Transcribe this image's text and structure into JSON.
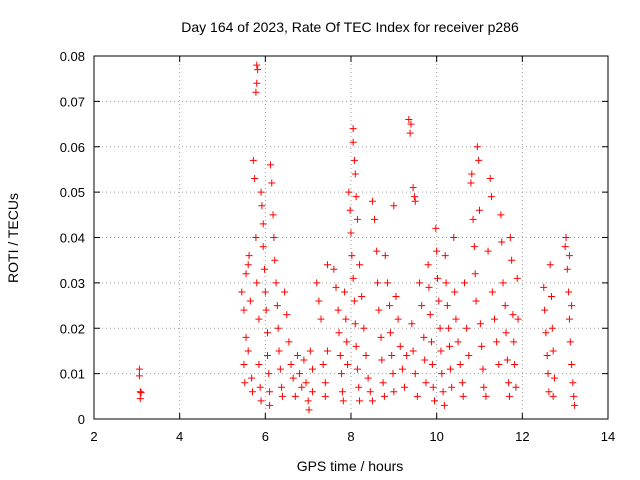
{
  "chart_data": {
    "type": "scatter",
    "title": "Day 164 of 2023, Rate Of TEC Index for receiver p286",
    "xlabel": "GPS time / hours",
    "ylabel": "ROTI / TECUs",
    "xlim": [
      2,
      14
    ],
    "ylim": [
      0,
      0.08
    ],
    "xticks": [
      2,
      4,
      6,
      8,
      10,
      12,
      14
    ],
    "xtick_labels": [
      "2",
      "4",
      "6",
      "8",
      "10",
      "12",
      "14"
    ],
    "yticks": [
      0,
      0.01,
      0.02,
      0.03,
      0.04,
      0.05,
      0.06,
      0.07,
      0.08
    ],
    "ytick_labels": [
      "0",
      "0.01",
      "0.02",
      "0.03",
      "0.04",
      "0.05",
      "0.06",
      "0.07",
      "0.08"
    ],
    "grid": true,
    "marker": "+",
    "color": "#ff0000",
    "series": [
      {
        "name": "ROTI",
        "points": [
          [
            3.06,
            0.011
          ],
          [
            3.06,
            0.0095
          ],
          [
            3.08,
            0.006
          ],
          [
            3.1,
            0.0058
          ],
          [
            3.08,
            0.0045
          ],
          [
            5.45,
            0.028
          ],
          [
            5.5,
            0.024
          ],
          [
            5.55,
            0.032
          ],
          [
            5.5,
            0.012
          ],
          [
            5.52,
            0.008
          ],
          [
            5.55,
            0.018
          ],
          [
            5.6,
            0.034
          ],
          [
            5.62,
            0.036
          ],
          [
            5.65,
            0.026
          ],
          [
            5.6,
            0.015
          ],
          [
            5.68,
            0.009
          ],
          [
            5.7,
            0.006
          ],
          [
            5.72,
            0.057
          ],
          [
            5.75,
            0.053
          ],
          [
            5.78,
            0.072
          ],
          [
            5.8,
            0.074
          ],
          [
            5.8,
            0.078
          ],
          [
            5.82,
            0.077
          ],
          [
            5.78,
            0.04
          ],
          [
            5.8,
            0.03
          ],
          [
            5.85,
            0.022
          ],
          [
            5.85,
            0.012
          ],
          [
            5.88,
            0.007
          ],
          [
            5.9,
            0.004
          ],
          [
            5.9,
            0.05
          ],
          [
            5.92,
            0.047
          ],
          [
            5.95,
            0.043
          ],
          [
            5.95,
            0.038
          ],
          [
            5.98,
            0.033
          ],
          [
            6.0,
            0.028
          ],
          [
            6.02,
            0.024
          ],
          [
            6.05,
            0.019
          ],
          [
            6.05,
            0.014
          ],
          [
            6.08,
            0.01
          ],
          [
            6.1,
            0.006
          ],
          [
            6.1,
            0.003
          ],
          [
            6.12,
            0.056
          ],
          [
            6.15,
            0.052
          ],
          [
            6.18,
            0.045
          ],
          [
            6.2,
            0.04
          ],
          [
            6.22,
            0.035
          ],
          [
            6.25,
            0.03
          ],
          [
            6.28,
            0.025
          ],
          [
            6.3,
            0.02
          ],
          [
            6.32,
            0.015
          ],
          [
            6.35,
            0.011
          ],
          [
            6.38,
            0.007
          ],
          [
            6.4,
            0.005
          ],
          [
            6.45,
            0.028
          ],
          [
            6.5,
            0.023
          ],
          [
            6.55,
            0.017
          ],
          [
            6.6,
            0.012
          ],
          [
            6.65,
            0.009
          ],
          [
            6.7,
            0.005
          ],
          [
            6.75,
            0.014
          ],
          [
            6.8,
            0.01
          ],
          [
            6.85,
            0.007
          ],
          [
            6.9,
            0.013
          ],
          [
            6.95,
            0.008
          ],
          [
            7.0,
            0.004
          ],
          [
            7.02,
            0.002
          ],
          [
            7.05,
            0.015
          ],
          [
            7.1,
            0.011
          ],
          [
            7.1,
            0.006
          ],
          [
            7.2,
            0.03
          ],
          [
            7.25,
            0.026
          ],
          [
            7.3,
            0.022
          ],
          [
            7.35,
            0.012
          ],
          [
            7.4,
            0.008
          ],
          [
            7.4,
            0.005
          ],
          [
            7.45,
            0.034
          ],
          [
            7.45,
            0.015
          ],
          [
            7.6,
            0.033
          ],
          [
            7.65,
            0.029
          ],
          [
            7.7,
            0.024
          ],
          [
            7.72,
            0.019
          ],
          [
            7.75,
            0.014
          ],
          [
            7.78,
            0.01
          ],
          [
            7.8,
            0.006
          ],
          [
            7.82,
            0.004
          ],
          [
            7.85,
            0.028
          ],
          [
            7.88,
            0.022
          ],
          [
            7.9,
            0.017
          ],
          [
            7.92,
            0.012
          ],
          [
            7.95,
            0.05
          ],
          [
            7.98,
            0.046
          ],
          [
            8.0,
            0.041
          ],
          [
            8.02,
            0.036
          ],
          [
            8.05,
            0.031
          ],
          [
            8.08,
            0.026
          ],
          [
            8.1,
            0.021
          ],
          [
            8.12,
            0.016
          ],
          [
            8.15,
            0.011
          ],
          [
            8.18,
            0.007
          ],
          [
            8.2,
            0.004
          ],
          [
            8.05,
            0.064
          ],
          [
            8.05,
            0.061
          ],
          [
            8.08,
            0.057
          ],
          [
            8.1,
            0.054
          ],
          [
            8.12,
            0.049
          ],
          [
            8.15,
            0.044
          ],
          [
            8.2,
            0.034
          ],
          [
            8.25,
            0.027
          ],
          [
            8.3,
            0.02
          ],
          [
            8.35,
            0.014
          ],
          [
            8.4,
            0.009
          ],
          [
            8.45,
            0.006
          ],
          [
            8.5,
            0.004
          ],
          [
            8.5,
            0.048
          ],
          [
            8.55,
            0.044
          ],
          [
            8.6,
            0.037
          ],
          [
            8.62,
            0.03
          ],
          [
            8.65,
            0.024
          ],
          [
            8.7,
            0.018
          ],
          [
            8.72,
            0.013
          ],
          [
            8.75,
            0.008
          ],
          [
            8.78,
            0.005
          ],
          [
            8.8,
            0.036
          ],
          [
            8.85,
            0.03
          ],
          [
            8.9,
            0.025
          ],
          [
            8.92,
            0.019
          ],
          [
            8.95,
            0.014
          ],
          [
            8.98,
            0.01
          ],
          [
            9.0,
            0.047
          ],
          [
            9.0,
            0.006
          ],
          [
            9.05,
            0.027
          ],
          [
            9.1,
            0.022
          ],
          [
            9.15,
            0.016
          ],
          [
            9.2,
            0.011
          ],
          [
            9.25,
            0.007
          ],
          [
            9.3,
            0.014
          ],
          [
            9.35,
            0.066
          ],
          [
            9.38,
            0.063
          ],
          [
            9.4,
            0.065
          ],
          [
            9.45,
            0.051
          ],
          [
            9.48,
            0.049
          ],
          [
            9.5,
            0.048
          ],
          [
            9.42,
            0.021
          ],
          [
            9.45,
            0.015
          ],
          [
            9.5,
            0.01
          ],
          [
            9.55,
            0.005
          ],
          [
            9.6,
            0.03
          ],
          [
            9.65,
            0.025
          ],
          [
            9.7,
            0.018
          ],
          [
            9.72,
            0.013
          ],
          [
            9.75,
            0.008
          ],
          [
            9.8,
            0.034
          ],
          [
            9.82,
            0.029
          ],
          [
            9.85,
            0.023
          ],
          [
            9.88,
            0.017
          ],
          [
            9.9,
            0.012
          ],
          [
            9.92,
            0.007
          ],
          [
            9.95,
            0.004
          ],
          [
            9.98,
            0.042
          ],
          [
            10.0,
            0.037
          ],
          [
            10.02,
            0.031
          ],
          [
            10.05,
            0.026
          ],
          [
            10.08,
            0.02
          ],
          [
            10.1,
            0.015
          ],
          [
            10.12,
            0.01
          ],
          [
            10.15,
            0.006
          ],
          [
            10.18,
            0.003
          ],
          [
            10.2,
            0.036
          ],
          [
            10.22,
            0.03
          ],
          [
            10.25,
            0.025
          ],
          [
            10.28,
            0.02
          ],
          [
            10.3,
            0.016
          ],
          [
            10.32,
            0.011
          ],
          [
            10.35,
            0.007
          ],
          [
            10.4,
            0.04
          ],
          [
            10.42,
            0.028
          ],
          [
            10.45,
            0.022
          ],
          [
            10.5,
            0.017
          ],
          [
            10.55,
            0.012
          ],
          [
            10.6,
            0.008
          ],
          [
            10.62,
            0.005
          ],
          [
            10.65,
            0.03
          ],
          [
            10.7,
            0.02
          ],
          [
            10.75,
            0.014
          ],
          [
            10.8,
            0.052
          ],
          [
            10.82,
            0.054
          ],
          [
            10.85,
            0.044
          ],
          [
            10.88,
            0.038
          ],
          [
            10.9,
            0.032
          ],
          [
            10.92,
            0.026
          ],
          [
            10.95,
            0.06
          ],
          [
            10.98,
            0.057
          ],
          [
            11.0,
            0.046
          ],
          [
            11.02,
            0.021
          ],
          [
            11.05,
            0.016
          ],
          [
            11.08,
            0.011
          ],
          [
            11.1,
            0.007
          ],
          [
            11.15,
            0.005
          ],
          [
            11.2,
            0.037
          ],
          [
            11.25,
            0.053
          ],
          [
            11.28,
            0.049
          ],
          [
            11.3,
            0.028
          ],
          [
            11.35,
            0.022
          ],
          [
            11.4,
            0.017
          ],
          [
            11.45,
            0.012
          ],
          [
            11.5,
            0.045
          ],
          [
            11.52,
            0.039
          ],
          [
            11.55,
            0.03
          ],
          [
            11.6,
            0.025
          ],
          [
            11.62,
            0.019
          ],
          [
            11.65,
            0.013
          ],
          [
            11.68,
            0.008
          ],
          [
            11.7,
            0.005
          ],
          [
            11.72,
            0.04
          ],
          [
            11.75,
            0.035
          ],
          [
            11.78,
            0.023
          ],
          [
            11.8,
            0.017
          ],
          [
            11.82,
            0.012
          ],
          [
            11.85,
            0.007
          ],
          [
            11.88,
            0.031
          ],
          [
            11.9,
            0.022
          ],
          [
            12.5,
            0.029
          ],
          [
            12.52,
            0.024
          ],
          [
            12.55,
            0.019
          ],
          [
            12.58,
            0.014
          ],
          [
            12.6,
            0.01
          ],
          [
            12.62,
            0.006
          ],
          [
            12.65,
            0.034
          ],
          [
            12.68,
            0.027
          ],
          [
            12.7,
            0.02
          ],
          [
            12.72,
            0.015
          ],
          [
            12.75,
            0.009
          ],
          [
            12.72,
            0.005
          ],
          [
            13.0,
            0.038
          ],
          [
            13.02,
            0.04
          ],
          [
            13.05,
            0.033
          ],
          [
            13.08,
            0.028
          ],
          [
            13.1,
            0.022
          ],
          [
            13.12,
            0.017
          ],
          [
            13.15,
            0.012
          ],
          [
            13.18,
            0.008
          ],
          [
            13.2,
            0.005
          ],
          [
            13.22,
            0.003
          ],
          [
            13.1,
            0.036
          ],
          [
            13.15,
            0.025
          ]
        ]
      }
    ]
  }
}
